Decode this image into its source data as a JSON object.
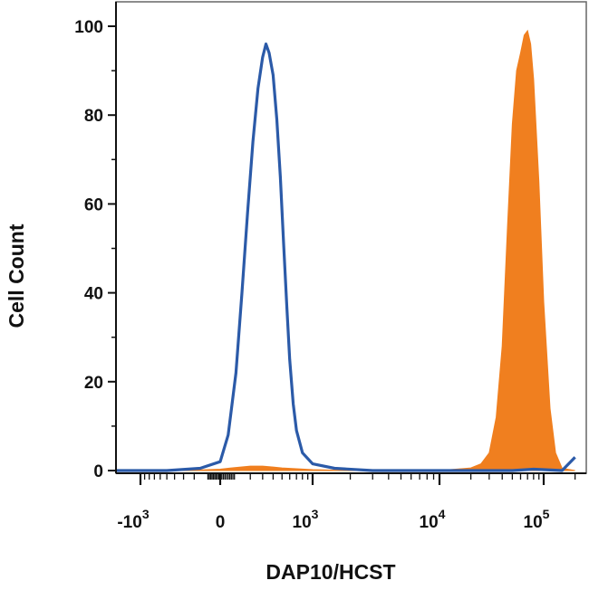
{
  "chart_data": {
    "type": "area",
    "title": "",
    "xlabel": "DAP10/HCST",
    "ylabel": "Cell Count",
    "x_scale": "biexponential",
    "xlim": [
      -2000,
      200000
    ],
    "ylim": [
      0,
      100
    ],
    "grid": false,
    "legend": "none",
    "y_ticks": [
      {
        "value": 0,
        "label": "0"
      },
      {
        "value": 20,
        "label": "20"
      },
      {
        "value": 40,
        "label": "40"
      },
      {
        "value": 60,
        "label": "60"
      },
      {
        "value": 80,
        "label": "80"
      },
      {
        "value": 100,
        "label": "100"
      }
    ],
    "x_ticks": [
      {
        "value": -1000,
        "base": "-10",
        "exp": "3"
      },
      {
        "value": 0,
        "base": "0",
        "exp": ""
      },
      {
        "value": 1000,
        "base": "10",
        "exp": "3"
      },
      {
        "value": 10000,
        "base": "10",
        "exp": "4"
      },
      {
        "value": 100000,
        "base": "10",
        "exp": "5"
      }
    ],
    "series": [
      {
        "style": "filled",
        "color": "#f07f1f",
        "x": [
          -2000,
          -300,
          0,
          100,
          200,
          300,
          400,
          500,
          700,
          1000,
          2000,
          10000,
          20000,
          25000,
          30000,
          35000,
          40000,
          45000,
          50000,
          55000,
          60000,
          65000,
          70000,
          75000,
          80000,
          90000,
          100000,
          115000,
          130000,
          150000,
          200000
        ],
        "y": [
          0,
          0,
          0.3,
          0.7,
          1,
          1,
          0.8,
          0.6,
          0.4,
          0.2,
          0,
          0,
          0.6,
          1.5,
          4,
          12,
          28,
          55,
          78,
          90,
          94,
          98,
          99,
          96,
          88,
          65,
          38,
          14,
          4,
          0.5,
          0
        ]
      },
      {
        "style": "line",
        "color": "#2b5aa8",
        "x": [
          -2000,
          -500,
          -150,
          0,
          50,
          100,
          140,
          180,
          220,
          260,
          300,
          330,
          360,
          400,
          440,
          480,
          520,
          560,
          600,
          650,
          700,
          800,
          1000,
          1500,
          3000,
          10000,
          50000,
          80000,
          100000,
          150000,
          200000
        ],
        "y": [
          0,
          0,
          0.5,
          2,
          8,
          22,
          40,
          58,
          74,
          86,
          93,
          96,
          94,
          89,
          79,
          66,
          51,
          37,
          25,
          15,
          9,
          4,
          1.5,
          0.5,
          0,
          0,
          0,
          0.3,
          0.2,
          0,
          3
        ]
      }
    ]
  }
}
